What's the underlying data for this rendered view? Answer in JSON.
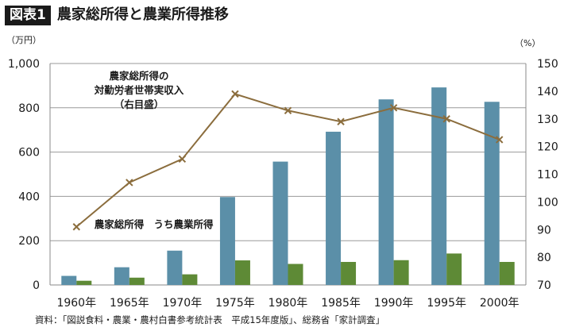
{
  "figure": {
    "badge": "図表1",
    "title": "農家総所得と農業所得推移",
    "source": "資料：「図説食料・農業・農村白書参考統計表　平成15年度版」、総務省「家計調査」"
  },
  "colors": {
    "total_income": "#5b8fa8",
    "farm_income": "#5e8a36",
    "ratio_line": "#8b6d3d",
    "gridline": "#9a9a9a",
    "axis": "#8a8a8a"
  },
  "chart_data": {
    "type": "bar",
    "categories": [
      "1960年",
      "1965年",
      "1970年",
      "1975年",
      "1980年",
      "1985年",
      "1990年",
      "1995年",
      "2000年"
    ],
    "series": [
      {
        "name": "農家総所得",
        "type": "bar",
        "axis": "left",
        "values": [
          41,
          80,
          155,
          397,
          557,
          692,
          838,
          892,
          827
        ]
      },
      {
        "name": "うち農業所得",
        "type": "bar",
        "axis": "left",
        "values": [
          19,
          33,
          48,
          111,
          95,
          104,
          112,
          142,
          104
        ]
      },
      {
        "name": "農家総所得の対勤労者世帯実収入（右目盛）",
        "type": "line",
        "axis": "right",
        "values": [
          91,
          107,
          115.5,
          139,
          133,
          129,
          134,
          130,
          122.5
        ]
      }
    ],
    "y_left": {
      "unit": "（万円）",
      "ylim": [
        0,
        1000
      ],
      "ticks": [
        0,
        200,
        400,
        600,
        800,
        1000
      ],
      "tick_labels": [
        "0",
        "200",
        "400",
        "600",
        "800",
        "1,000"
      ]
    },
    "y_right": {
      "unit": "（%）",
      "ylim": [
        70,
        150
      ],
      "ticks": [
        70,
        80,
        90,
        100,
        110,
        120,
        130,
        140,
        150
      ],
      "tick_labels": [
        "70",
        "80",
        "90",
        "100",
        "110",
        "120",
        "130",
        "140",
        "150"
      ]
    },
    "annotations": [
      {
        "lines": [
          "農家総所得の",
          "対勤労者世帯実収入",
          "（右目盛）"
        ]
      },
      {
        "lines": [
          "農家総所得"
        ]
      },
      {
        "lines": [
          "うち農業所得"
        ]
      }
    ],
    "grid": true,
    "legend": "none"
  }
}
